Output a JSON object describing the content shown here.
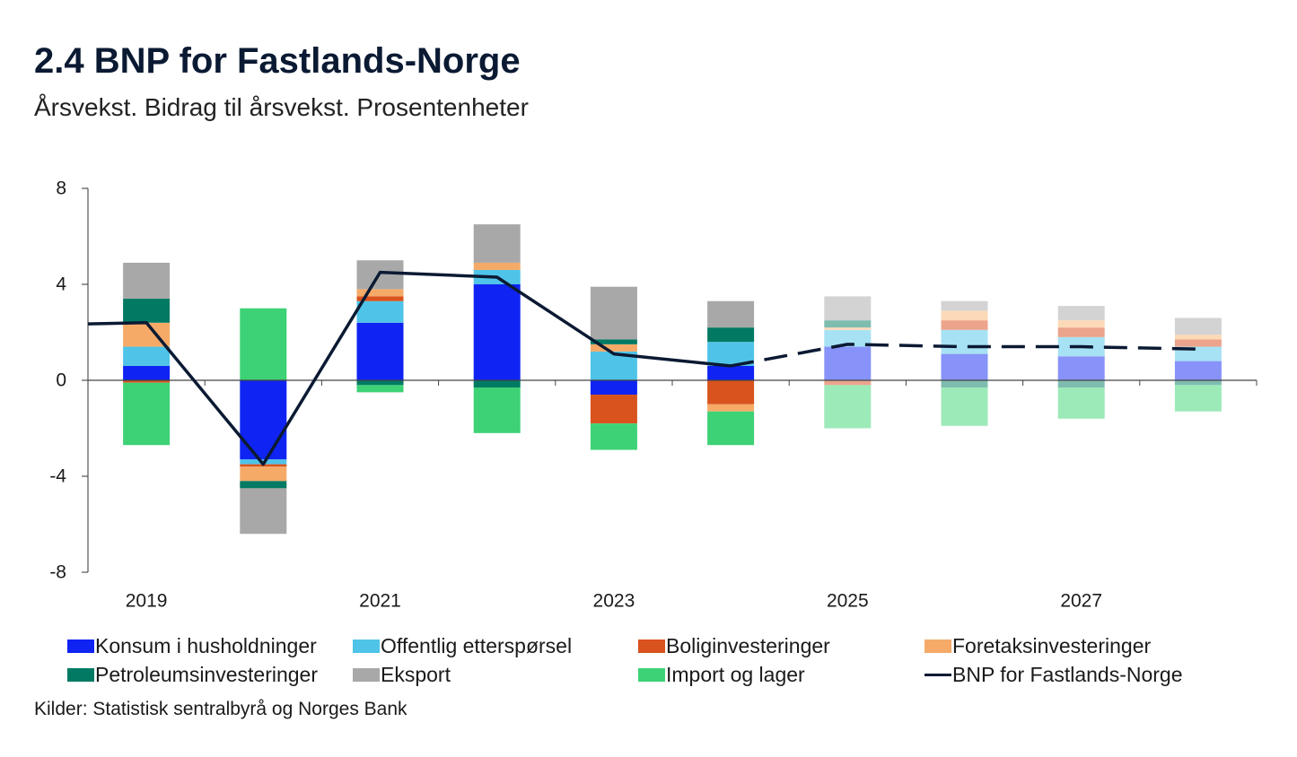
{
  "chart_data": {
    "type": "bar",
    "stacked": true,
    "title": "2.4 BNP for Fastlands-Norge",
    "subtitle": "Årsvekst. Bidrag til årsvekst. Prosentenheter",
    "source": "Kilder: Statistisk sentralbyrå og Norges Bank",
    "xlabel": "",
    "ylabel": "",
    "ylim": [
      -8,
      8
    ],
    "yticks": [
      8,
      4,
      0,
      -4,
      -8
    ],
    "categories": [
      2019,
      2020,
      2021,
      2022,
      2023,
      2024,
      2025,
      2026,
      2027,
      2028
    ],
    "xtick_labels": [
      "2019",
      "2021",
      "2023",
      "2025",
      "2027"
    ],
    "projection_from": 2025,
    "legend_position": "bottom",
    "series": [
      {
        "name": "Konsum i husholdninger",
        "color": "#0f24f2",
        "color_projection": "#8793f8",
        "values": [
          0.6,
          -3.3,
          2.4,
          4.0,
          -0.6,
          0.6,
          1.4,
          1.1,
          1.0,
          0.8
        ]
      },
      {
        "name": "Offentlig etterspørsel",
        "color": "#4fc4e8",
        "color_projection": "#a7e2f4",
        "values": [
          0.8,
          -0.2,
          0.9,
          0.6,
          1.2,
          1.0,
          0.7,
          1.0,
          0.8,
          0.6
        ]
      },
      {
        "name": "Boliginvesteringer",
        "color": "#d8531d",
        "color_projection": "#eca48c",
        "values": [
          -0.1,
          -0.1,
          0.2,
          0.0,
          -1.2,
          -1.0,
          -0.2,
          0.4,
          0.4,
          0.3
        ]
      },
      {
        "name": "Foretaksinvesteringer",
        "color": "#f5aa68",
        "color_projection": "#fcdab8",
        "values": [
          1.0,
          -0.6,
          0.3,
          0.3,
          0.3,
          -0.3,
          0.1,
          0.4,
          0.3,
          0.2
        ]
      },
      {
        "name": "Petroleumsinvesteringer",
        "color": "#007a63",
        "color_projection": "#7fbcb0",
        "values": [
          1.0,
          -0.3,
          -0.2,
          -0.3,
          0.2,
          0.6,
          0.3,
          -0.3,
          -0.3,
          -0.2
        ]
      },
      {
        "name": "Eksport",
        "color": "#a8a8a8",
        "color_projection": "#d3d3d3",
        "values": [
          1.5,
          -1.9,
          1.2,
          1.6,
          2.2,
          1.1,
          1.0,
          0.4,
          0.6,
          0.7
        ]
      },
      {
        "name": "Import og lager",
        "color": "#3dd276",
        "color_projection": "#9deab9",
        "values": [
          -2.6,
          3.0,
          -0.3,
          -1.9,
          -1.1,
          -1.4,
          -1.8,
          -1.6,
          -1.3,
          -1.1
        ]
      }
    ],
    "line": {
      "name": "BNP for Fastlands-Norge",
      "color": "#0b1a33",
      "x": [
        2018,
        2019,
        2020,
        2021,
        2022,
        2023,
        2024,
        2025,
        2026,
        2027,
        2028
      ],
      "values": [
        2.3,
        2.4,
        -3.5,
        4.5,
        4.3,
        1.1,
        0.6,
        1.5,
        1.4,
        1.4,
        1.3
      ],
      "dashed_from": 2024
    }
  }
}
